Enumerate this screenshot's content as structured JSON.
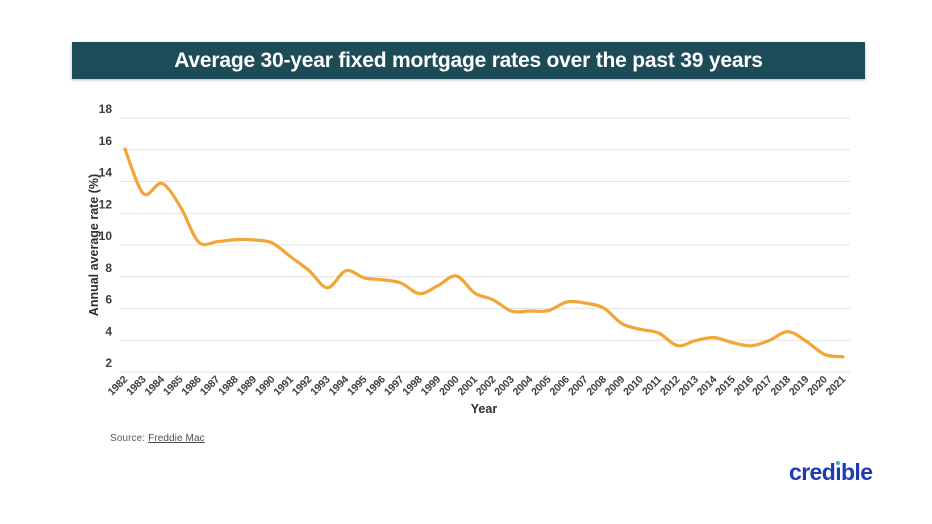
{
  "header": {
    "title": "Average 30-year fixed mortgage rates over the past 39 years",
    "bg_color": "#1d4b57",
    "text_color": "#ffffff"
  },
  "chart_data": {
    "type": "line",
    "title": "Average 30-year fixed mortgage rates over the past 39 years",
    "xlabel": "Year",
    "ylabel": "Annual average rate (%)",
    "categories": [
      "1982",
      "1983",
      "1984",
      "1985",
      "1986",
      "1987",
      "1988",
      "1989",
      "1990",
      "1991",
      "1992",
      "1993",
      "1994",
      "1995",
      "1996",
      "1997",
      "1998",
      "1999",
      "2000",
      "2001",
      "2002",
      "2003",
      "2004",
      "2005",
      "2006",
      "2007",
      "2008",
      "2009",
      "2010",
      "2011",
      "2012",
      "2013",
      "2014",
      "2015",
      "2016",
      "2017",
      "2018",
      "2019",
      "2020",
      "2021"
    ],
    "values": [
      16.04,
      13.24,
      13.88,
      12.43,
      10.19,
      10.21,
      10.34,
      10.32,
      10.13,
      9.25,
      8.39,
      7.31,
      8.38,
      7.93,
      7.81,
      7.6,
      6.94,
      7.44,
      8.05,
      6.97,
      6.54,
      5.83,
      5.84,
      5.87,
      6.41,
      6.34,
      6.03,
      5.04,
      4.69,
      4.45,
      3.66,
      3.98,
      4.17,
      3.85,
      3.65,
      3.99,
      4.54,
      3.94,
      3.1,
      2.96
    ],
    "ylim": [
      2,
      18
    ],
    "yticks": [
      2,
      4,
      6,
      8,
      10,
      12,
      14,
      16,
      18
    ],
    "grid": true,
    "smooth": true,
    "line_color": "#F2A637",
    "grid_color": "#e4e4e4"
  },
  "footer": {
    "source_label": "Source:",
    "source_link_text": "Freddie Mac"
  },
  "logo": {
    "text": "credible",
    "color": "#1c3bb5",
    "dot_color": "#2fb0c6"
  }
}
